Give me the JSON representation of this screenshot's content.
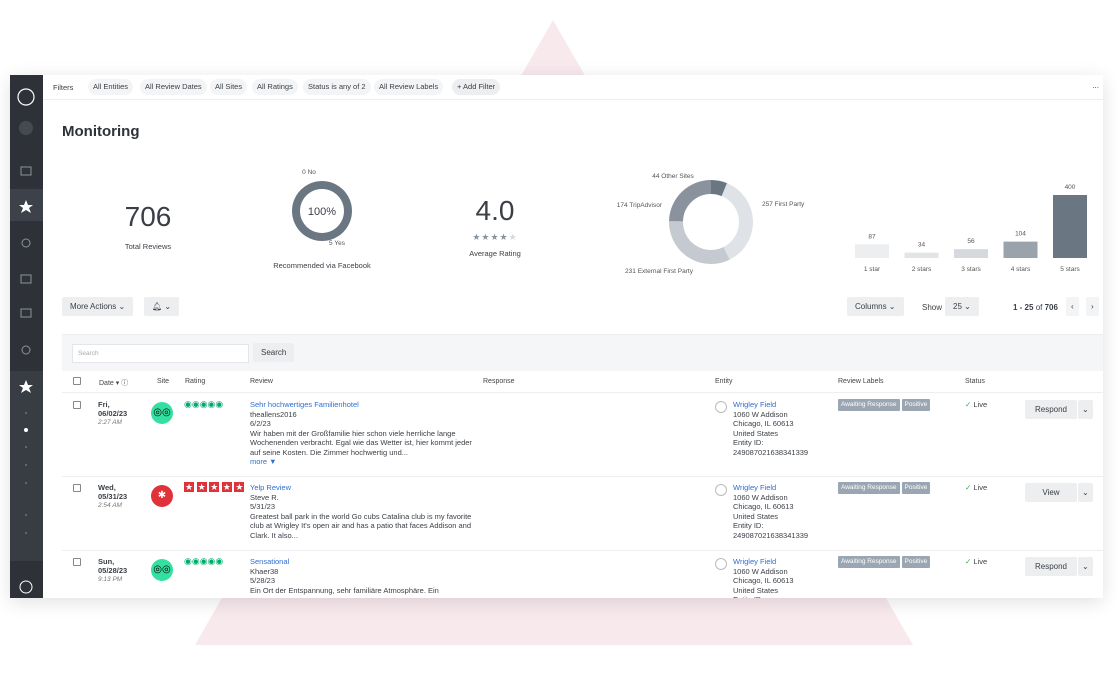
{
  "filters": {
    "label": "Filters",
    "items": [
      "All Entities",
      "All Review Dates",
      "All Sites",
      "All Ratings",
      "Status is any of 2",
      "All Review Labels"
    ],
    "add": "+ Add Filter",
    "more": "..."
  },
  "title": "Monitoring",
  "total": {
    "value": "706",
    "label": "Total Reviews"
  },
  "rating": {
    "value": "4.0",
    "label": "Average Rating"
  },
  "chart_data": [
    {
      "type": "donut",
      "title": "Recommended via Facebook",
      "center_label": "100%",
      "categories": [
        "No",
        "Yes"
      ],
      "values": [
        0,
        5
      ],
      "colors": [
        "#c5cad0",
        "#6b7683"
      ]
    },
    {
      "type": "donut",
      "categories": [
        "Other Sites",
        "First Party",
        "External First Party",
        "TripAdvisor"
      ],
      "values": [
        44,
        257,
        231,
        174
      ],
      "colors": [
        "#6b7683",
        "#dfe2e6",
        "#c5cad0",
        "#8a939d"
      ]
    },
    {
      "type": "bar",
      "categories": [
        "1 star",
        "2 stars",
        "3 stars",
        "4 stars",
        "5 stars"
      ],
      "values": [
        87,
        34,
        56,
        104,
        400
      ],
      "colors": [
        "#eceef0",
        "#e2e5e8",
        "#d5d9dd",
        "#9aa3ac",
        "#6b7683"
      ]
    }
  ],
  "toolbar": {
    "more_actions": "More Actions",
    "columns": "Columns",
    "show": "Show",
    "page_size": "25",
    "range": "1 - 25",
    "of": "of",
    "total": "706"
  },
  "search": {
    "placeholder": "Search",
    "button": "Search"
  },
  "table": {
    "headers": [
      "Date",
      "Site",
      "Rating",
      "Review",
      "Response",
      "Entity",
      "Review Labels",
      "Status"
    ],
    "rows": [
      {
        "day": "Fri,",
        "date": "06/02/23",
        "time": "2:27 AM",
        "site": "tripadvisor",
        "title": "Sehr hochwertiges Familienhotel",
        "author": "theallens2016",
        "review_date": "6/2/23",
        "text": "Wir haben mit der Großfamilie hier schon viele herrliche lange Wochenenden verbracht. Egal wie das Wetter ist, hier kommt jeder auf seine Kosten. Die Zimmer hochwertig und...",
        "more": "more ▼",
        "entity": [
          "Wrigley Field",
          "1060 W Addison",
          "Chicago, IL 60613",
          "United States",
          "Entity ID:",
          "249087021638341339"
        ],
        "labels": [
          "Awaiting Response",
          "Positive"
        ],
        "status": "Live",
        "action": "Respond"
      },
      {
        "day": "Wed,",
        "date": "05/31/23",
        "time": "2:54 AM",
        "site": "yelp",
        "title": "Yelp Review",
        "author": "Steve R.",
        "review_date": "5/31/23",
        "text": "Greatest ball park in the world Go cubs Catalina club is my favorite club at Wrigley It's open air and has a patio that faces Addison and Clark. It also...",
        "entity": [
          "Wrigley Field",
          "1060 W Addison",
          "Chicago, IL 60613",
          "United States",
          "Entity ID:",
          "249087021638341339"
        ],
        "labels": [
          "Awaiting Response",
          "Positive"
        ],
        "status": "Live",
        "action": "View"
      },
      {
        "day": "Sun,",
        "date": "05/28/23",
        "time": "9:13 PM",
        "site": "tripadvisor",
        "title": "Sensational",
        "author": "Khaer38",
        "review_date": "5/28/23",
        "text": "Ein Ort der Entspannung, sehr familiäre Atmosphäre. Ein",
        "entity": [
          "Wrigley Field",
          "1060 W Addison",
          "Chicago, IL 60613",
          "United States",
          "Entity ID:"
        ],
        "labels": [
          "Awaiting Response",
          "Positive"
        ],
        "status": "Live",
        "action": "Respond"
      }
    ]
  }
}
